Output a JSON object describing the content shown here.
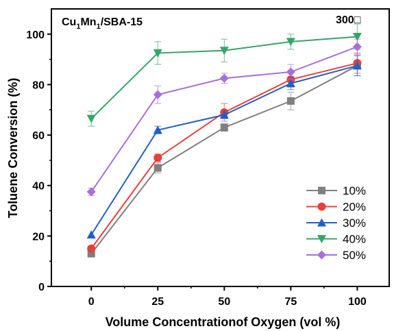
{
  "chart_data": {
    "type": "line",
    "title": "",
    "annotation_left": {
      "base": "Cu",
      "sub1": "1",
      "mid": "Mn",
      "sub2": "1",
      "rest": "/SBA-15"
    },
    "annotation_right": "300□",
    "xlabel": "Volume Concentrationof Oxygen (vol %)",
    "ylabel": "Toluene Conversion (%)",
    "x": [
      0,
      25,
      50,
      75,
      100
    ],
    "x_ticks": [
      "0",
      "25",
      "50",
      "75",
      "100"
    ],
    "y_ticks": [
      "0",
      "20",
      "40",
      "60",
      "80",
      "100"
    ],
    "xlim": [
      -15,
      112
    ],
    "ylim": [
      0,
      110
    ],
    "grid": false,
    "legend_position": "lower-right",
    "series": [
      {
        "name": "10%",
        "color": "#7f7f7f",
        "marker": "square",
        "values": [
          13,
          47,
          63,
          73.5,
          87.5
        ],
        "errors": [
          0,
          2,
          1.5,
          3.5,
          4
        ]
      },
      {
        "name": "20%",
        "color": "#e8403a",
        "marker": "circle",
        "values": [
          15,
          51,
          69,
          82,
          88.5
        ],
        "errors": [
          0,
          1.5,
          3.5,
          3,
          4
        ]
      },
      {
        "name": "30%",
        "color": "#1f5fc8",
        "marker": "triangle-up",
        "values": [
          20.5,
          62,
          68,
          80.5,
          87.5
        ],
        "errors": [
          0,
          1.5,
          1.5,
          2.5,
          4
        ]
      },
      {
        "name": "40%",
        "color": "#35a565",
        "marker": "triangle-down",
        "values": [
          66.5,
          92.5,
          93.5,
          97,
          99
        ],
        "errors": [
          3,
          4.5,
          4.5,
          3,
          5
        ]
      },
      {
        "name": "50%",
        "color": "#a86fdb",
        "marker": "diamond",
        "values": [
          37.5,
          76,
          82.5,
          85,
          95
        ],
        "errors": [
          1.5,
          3.5,
          2,
          3,
          3
        ]
      }
    ]
  }
}
